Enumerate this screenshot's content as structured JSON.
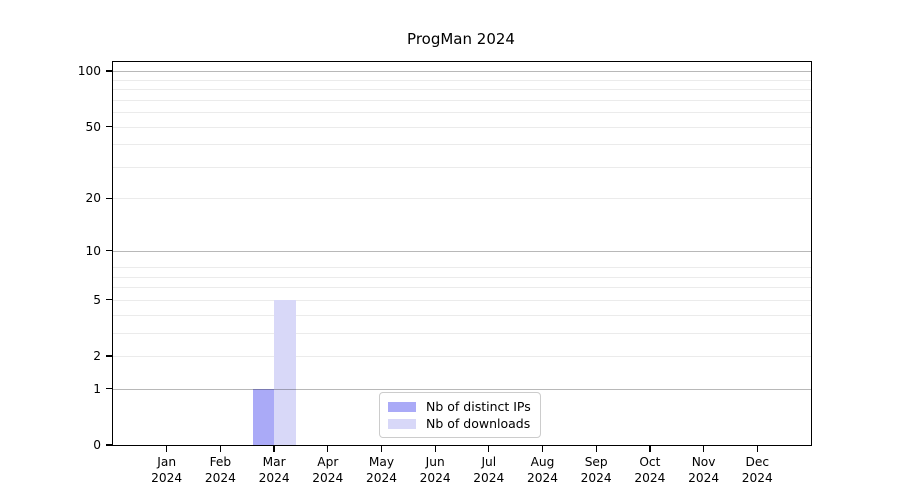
{
  "figure": {
    "background": "#ffffff"
  },
  "chart_data": {
    "type": "bar",
    "title": "ProgMan 2024",
    "categories": [
      "Jan 2024",
      "Feb 2024",
      "Mar 2024",
      "Apr 2024",
      "May 2024",
      "Jun 2024",
      "Jul 2024",
      "Aug 2024",
      "Sep 2024",
      "Oct 2024",
      "Nov 2024",
      "Dec 2024"
    ],
    "series": [
      {
        "name": "Nb of distinct IPs",
        "color": "#aaaaf7",
        "values": [
          0,
          0,
          1,
          0,
          0,
          0,
          0,
          0,
          0,
          0,
          0,
          0
        ]
      },
      {
        "name": "Nb of downloads",
        "color": "#d8d8f8",
        "values": [
          0,
          0,
          5,
          0,
          0,
          0,
          0,
          0,
          0,
          0,
          0,
          0
        ]
      }
    ],
    "xlabel": "",
    "ylabel": "",
    "yscale": "log1p",
    "ylim": [
      0,
      112
    ],
    "y_tick_values": [
      0,
      1,
      2,
      5,
      10,
      20,
      50,
      100
    ],
    "y_tick_labels": [
      "0",
      "1",
      "2",
      "5",
      "10",
      "20",
      "50",
      "100"
    ],
    "y_major_gridlines": [
      1,
      10,
      100
    ],
    "y_minor_gridlines": [
      2,
      3,
      4,
      5,
      6,
      7,
      8,
      20,
      30,
      40,
      50,
      60,
      70,
      80,
      90
    ],
    "grid": true,
    "legend_position": "lower center"
  },
  "colors": {
    "frame": "#000000",
    "grid_major": "#b8b8b8",
    "grid_minor": "#ebebeb",
    "legend_border": "#cccccc",
    "text": "#000000"
  }
}
